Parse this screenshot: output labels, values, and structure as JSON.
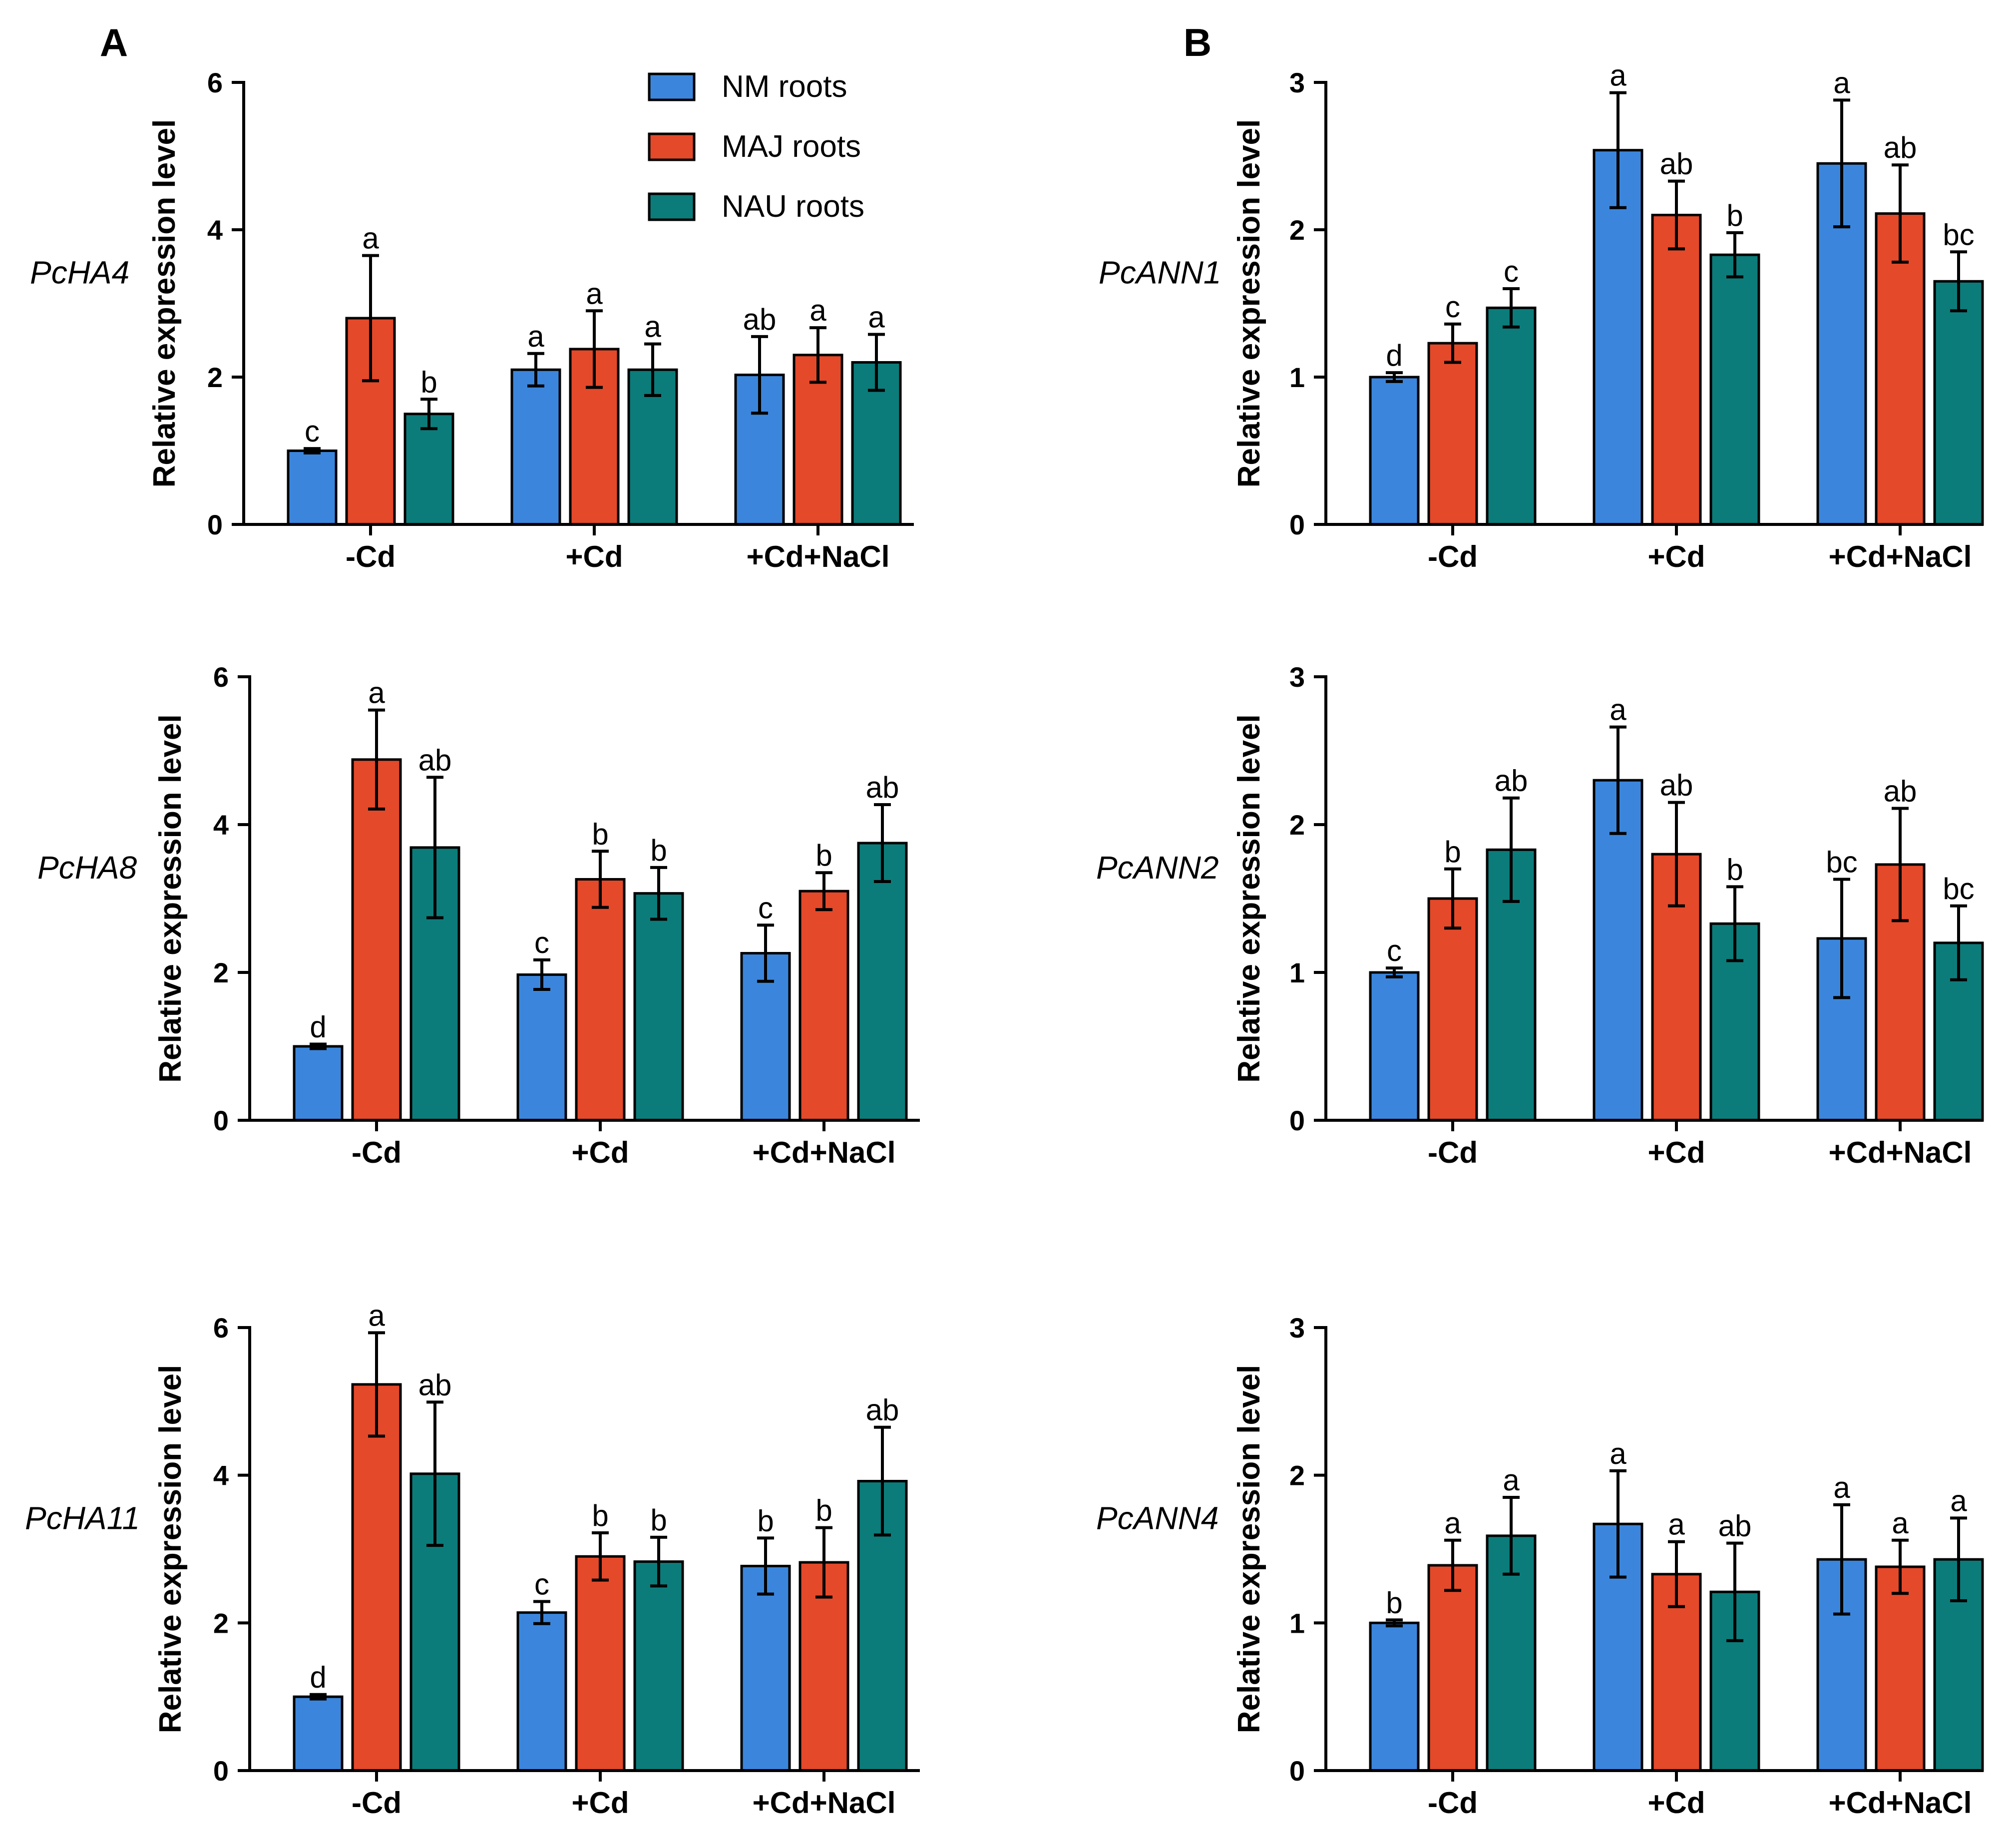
{
  "figure": {
    "panel_labels": [
      "A",
      "B"
    ],
    "categories": [
      "-Cd",
      "+Cd",
      "+Cd+NaCl"
    ],
    "series_names": [
      "NM roots",
      "MAJ roots",
      "NAU roots"
    ],
    "colors": {
      "NM roots": "#3b86dc",
      "MAJ roots": "#e4492a",
      "NAU roots": "#0b7c7a"
    }
  },
  "legend": {
    "position": "top-right of panel A top chart",
    "items": [
      {
        "label": "NM roots",
        "color": "#3b86dc"
      },
      {
        "label": "MAJ roots",
        "color": "#e4492a"
      },
      {
        "label": "NAU roots",
        "color": "#0b7c7a"
      }
    ]
  },
  "chart_data": [
    {
      "type": "bar",
      "panel": "A",
      "gene": "PcHA4",
      "ylabel": "Relative expression level",
      "ylim": [
        0,
        6
      ],
      "yticks": [
        0,
        2,
        4,
        6
      ],
      "categories": [
        "-Cd",
        "+Cd",
        "+Cd+NaCl"
      ],
      "series": [
        {
          "name": "NM roots",
          "values": [
            1.0,
            2.1,
            2.03
          ],
          "errors": [
            0.03,
            0.22,
            0.52
          ],
          "letters": [
            "c",
            "a",
            "ab"
          ]
        },
        {
          "name": "MAJ roots",
          "values": [
            2.8,
            2.38,
            2.3
          ],
          "errors": [
            0.85,
            0.52,
            0.37
          ],
          "letters": [
            "a",
            "a",
            "a"
          ]
        },
        {
          "name": "NAU roots",
          "values": [
            1.5,
            2.1,
            2.2
          ],
          "errors": [
            0.2,
            0.35,
            0.38
          ],
          "letters": [
            "b",
            "a",
            "a"
          ]
        }
      ]
    },
    {
      "type": "bar",
      "panel": "A",
      "gene": "PcHA8",
      "ylabel": "Relative expression level",
      "ylim": [
        0,
        6
      ],
      "yticks": [
        0,
        2,
        4,
        6
      ],
      "categories": [
        "-Cd",
        "+Cd",
        "+Cd+NaCl"
      ],
      "series": [
        {
          "name": "NM roots",
          "values": [
            1.0,
            1.97,
            2.26
          ],
          "errors": [
            0.03,
            0.2,
            0.38
          ],
          "letters": [
            "d",
            "c",
            "c"
          ]
        },
        {
          "name": "MAJ roots",
          "values": [
            4.88,
            3.26,
            3.1
          ],
          "errors": [
            0.67,
            0.38,
            0.25
          ],
          "letters": [
            "a",
            "b",
            "b"
          ]
        },
        {
          "name": "NAU roots",
          "values": [
            3.69,
            3.07,
            3.75
          ],
          "errors": [
            0.95,
            0.35,
            0.52
          ],
          "letters": [
            "ab",
            "b",
            "ab"
          ]
        }
      ]
    },
    {
      "type": "bar",
      "panel": "A",
      "gene": "PcHA11",
      "ylabel": "Relative expression level",
      "ylim": [
        0,
        6
      ],
      "yticks": [
        0,
        2,
        4,
        6
      ],
      "categories": [
        "-Cd",
        "+Cd",
        "+Cd+NaCl"
      ],
      "series": [
        {
          "name": "NM roots",
          "values": [
            1.0,
            2.14,
            2.77
          ],
          "errors": [
            0.03,
            0.15,
            0.38
          ],
          "letters": [
            "d",
            "c",
            "b"
          ]
        },
        {
          "name": "MAJ roots",
          "values": [
            5.23,
            2.9,
            2.82
          ],
          "errors": [
            0.7,
            0.32,
            0.47
          ],
          "letters": [
            "a",
            "b",
            "b"
          ]
        },
        {
          "name": "NAU roots",
          "values": [
            4.02,
            2.83,
            3.92
          ],
          "errors": [
            0.97,
            0.33,
            0.73
          ],
          "letters": [
            "ab",
            "b",
            "ab"
          ]
        }
      ]
    },
    {
      "type": "bar",
      "panel": "B",
      "gene": "PcANN1",
      "ylabel": "Relative expression level",
      "ylim": [
        0,
        3
      ],
      "yticks": [
        0,
        1,
        2,
        3
      ],
      "categories": [
        "-Cd",
        "+Cd",
        "+Cd+NaCl"
      ],
      "series": [
        {
          "name": "NM roots",
          "values": [
            1.0,
            2.54,
            2.45
          ],
          "errors": [
            0.03,
            0.39,
            0.43
          ],
          "letters": [
            "d",
            "a",
            "a"
          ]
        },
        {
          "name": "MAJ roots",
          "values": [
            1.23,
            2.1,
            2.11
          ],
          "errors": [
            0.13,
            0.23,
            0.33
          ],
          "letters": [
            "c",
            "ab",
            "ab"
          ]
        },
        {
          "name": "NAU roots",
          "values": [
            1.47,
            1.83,
            1.65
          ],
          "errors": [
            0.13,
            0.15,
            0.2
          ],
          "letters": [
            "c",
            "b",
            "bc"
          ]
        }
      ]
    },
    {
      "type": "bar",
      "panel": "B",
      "gene": "PcANN2",
      "ylabel": "Relative expression level",
      "ylim": [
        0,
        3
      ],
      "yticks": [
        0,
        1,
        2,
        3
      ],
      "categories": [
        "-Cd",
        "+Cd",
        "+Cd+NaCl"
      ],
      "series": [
        {
          "name": "NM roots",
          "values": [
            1.0,
            2.3,
            1.23
          ],
          "errors": [
            0.03,
            0.36,
            0.4
          ],
          "letters": [
            "c",
            "a",
            "bc"
          ]
        },
        {
          "name": "MAJ roots",
          "values": [
            1.5,
            1.8,
            1.73
          ],
          "errors": [
            0.2,
            0.35,
            0.38
          ],
          "letters": [
            "b",
            "ab",
            "ab"
          ]
        },
        {
          "name": "NAU roots",
          "values": [
            1.83,
            1.33,
            1.2
          ],
          "errors": [
            0.35,
            0.25,
            0.25
          ],
          "letters": [
            "ab",
            "b",
            "bc"
          ]
        }
      ]
    },
    {
      "type": "bar",
      "panel": "B",
      "gene": "PcANN4",
      "ylabel": "Relative expression level",
      "ylim": [
        0,
        3
      ],
      "yticks": [
        0,
        1,
        2,
        3
      ],
      "categories": [
        "-Cd",
        "+Cd",
        "+Cd+NaCl"
      ],
      "series": [
        {
          "name": "NM roots",
          "values": [
            1.0,
            1.67,
            1.43
          ],
          "errors": [
            0.02,
            0.36,
            0.37
          ],
          "letters": [
            "b",
            "a",
            "a"
          ]
        },
        {
          "name": "MAJ roots",
          "values": [
            1.39,
            1.33,
            1.38
          ],
          "errors": [
            0.17,
            0.22,
            0.18
          ],
          "letters": [
            "a",
            "a",
            "a"
          ]
        },
        {
          "name": "NAU roots",
          "values": [
            1.59,
            1.21,
            1.43
          ],
          "errors": [
            0.26,
            0.33,
            0.28
          ],
          "letters": [
            "a",
            "ab",
            "a"
          ]
        }
      ]
    }
  ]
}
